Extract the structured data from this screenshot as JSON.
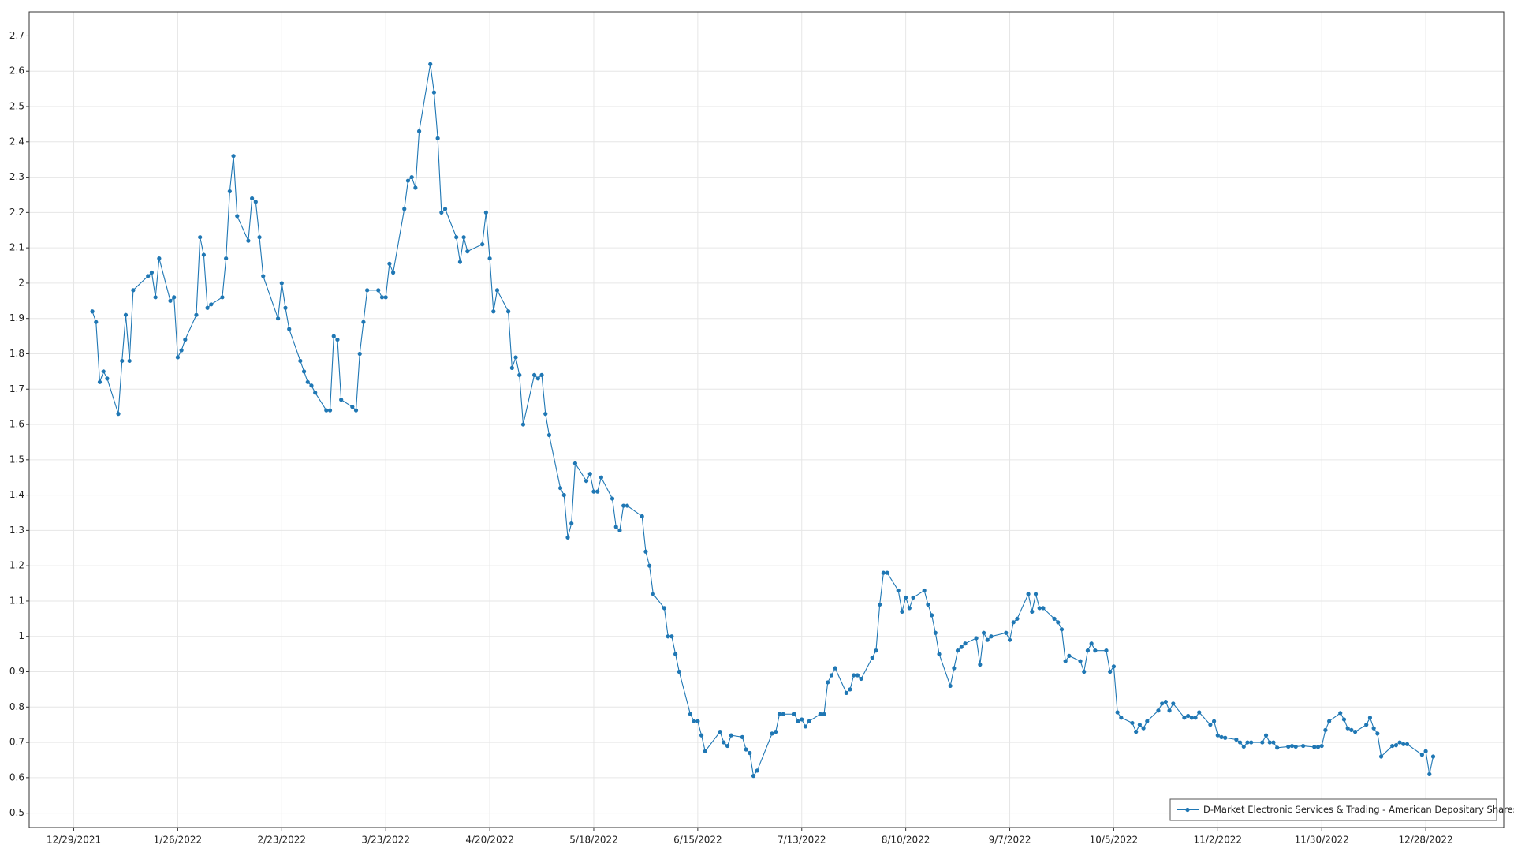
{
  "chart_data": {
    "type": "line",
    "x": [
      "2022-01-03",
      "2022-01-04",
      "2022-01-05",
      "2022-01-06",
      "2022-01-07",
      "2022-01-10",
      "2022-01-11",
      "2022-01-12",
      "2022-01-13",
      "2022-01-14",
      "2022-01-18",
      "2022-01-19",
      "2022-01-20",
      "2022-01-21",
      "2022-01-24",
      "2022-01-25",
      "2022-01-26",
      "2022-01-27",
      "2022-01-28",
      "2022-01-31",
      "2022-02-01",
      "2022-02-02",
      "2022-02-03",
      "2022-02-04",
      "2022-02-07",
      "2022-02-08",
      "2022-02-09",
      "2022-02-10",
      "2022-02-11",
      "2022-02-14",
      "2022-02-15",
      "2022-02-16",
      "2022-02-17",
      "2022-02-18",
      "2022-02-22",
      "2022-02-23",
      "2022-02-24",
      "2022-02-25",
      "2022-02-28",
      "2022-03-01",
      "2022-03-02",
      "2022-03-03",
      "2022-03-04",
      "2022-03-07",
      "2022-03-08",
      "2022-03-09",
      "2022-03-10",
      "2022-03-11",
      "2022-03-14",
      "2022-03-15",
      "2022-03-16",
      "2022-03-17",
      "2022-03-18",
      "2022-03-21",
      "2022-03-22",
      "2022-03-23",
      "2022-03-24",
      "2022-03-25",
      "2022-03-28",
      "2022-03-29",
      "2022-03-30",
      "2022-03-31",
      "2022-04-01",
      "2022-04-04",
      "2022-04-05",
      "2022-04-06",
      "2022-04-07",
      "2022-04-08",
      "2022-04-11",
      "2022-04-12",
      "2022-04-13",
      "2022-04-14",
      "2022-04-18",
      "2022-04-19",
      "2022-04-20",
      "2022-04-21",
      "2022-04-22",
      "2022-04-25",
      "2022-04-26",
      "2022-04-27",
      "2022-04-28",
      "2022-04-29",
      "2022-05-02",
      "2022-05-03",
      "2022-05-04",
      "2022-05-05",
      "2022-05-06",
      "2022-05-09",
      "2022-05-10",
      "2022-05-11",
      "2022-05-12",
      "2022-05-13",
      "2022-05-16",
      "2022-05-17",
      "2022-05-18",
      "2022-05-19",
      "2022-05-20",
      "2022-05-23",
      "2022-05-24",
      "2022-05-25",
      "2022-05-26",
      "2022-05-27",
      "2022-05-31",
      "2022-06-01",
      "2022-06-02",
      "2022-06-03",
      "2022-06-06",
      "2022-06-07",
      "2022-06-08",
      "2022-06-09",
      "2022-06-10",
      "2022-06-13",
      "2022-06-14",
      "2022-06-15",
      "2022-06-16",
      "2022-06-17",
      "2022-06-21",
      "2022-06-22",
      "2022-06-23",
      "2022-06-24",
      "2022-06-27",
      "2022-06-28",
      "2022-06-29",
      "2022-06-30",
      "2022-07-01",
      "2022-07-05",
      "2022-07-06",
      "2022-07-07",
      "2022-07-08",
      "2022-07-11",
      "2022-07-12",
      "2022-07-13",
      "2022-07-14",
      "2022-07-15",
      "2022-07-18",
      "2022-07-19",
      "2022-07-20",
      "2022-07-21",
      "2022-07-22",
      "2022-07-25",
      "2022-07-26",
      "2022-07-27",
      "2022-07-28",
      "2022-07-29",
      "2022-08-01",
      "2022-08-02",
      "2022-08-03",
      "2022-08-04",
      "2022-08-05",
      "2022-08-08",
      "2022-08-09",
      "2022-08-10",
      "2022-08-11",
      "2022-08-12",
      "2022-08-15",
      "2022-08-16",
      "2022-08-17",
      "2022-08-18",
      "2022-08-19",
      "2022-08-22",
      "2022-08-23",
      "2022-08-24",
      "2022-08-25",
      "2022-08-26",
      "2022-08-29",
      "2022-08-30",
      "2022-08-31",
      "2022-09-01",
      "2022-09-02",
      "2022-09-06",
      "2022-09-07",
      "2022-09-08",
      "2022-09-09",
      "2022-09-12",
      "2022-09-13",
      "2022-09-14",
      "2022-09-15",
      "2022-09-16",
      "2022-09-19",
      "2022-09-20",
      "2022-09-21",
      "2022-09-22",
      "2022-09-23",
      "2022-09-26",
      "2022-09-27",
      "2022-09-28",
      "2022-09-29",
      "2022-09-30",
      "2022-10-03",
      "2022-10-04",
      "2022-10-05",
      "2022-10-06",
      "2022-10-07",
      "2022-10-10",
      "2022-10-11",
      "2022-10-12",
      "2022-10-13",
      "2022-10-14",
      "2022-10-17",
      "2022-10-18",
      "2022-10-19",
      "2022-10-20",
      "2022-10-21",
      "2022-10-24",
      "2022-10-25",
      "2022-10-26",
      "2022-10-27",
      "2022-10-28",
      "2022-10-31",
      "2022-11-01",
      "2022-11-02",
      "2022-11-03",
      "2022-11-04",
      "2022-11-07",
      "2022-11-08",
      "2022-11-09",
      "2022-11-10",
      "2022-11-11",
      "2022-11-14",
      "2022-11-15",
      "2022-11-16",
      "2022-11-17",
      "2022-11-18",
      "2022-11-21",
      "2022-11-22",
      "2022-11-23",
      "2022-11-25",
      "2022-11-28",
      "2022-11-29",
      "2022-11-30",
      "2022-12-01",
      "2022-12-02",
      "2022-12-05",
      "2022-12-06",
      "2022-12-07",
      "2022-12-08",
      "2022-12-09",
      "2022-12-12",
      "2022-12-13",
      "2022-12-14",
      "2022-12-15",
      "2022-12-16",
      "2022-12-19",
      "2022-12-20",
      "2022-12-21",
      "2022-12-22",
      "2022-12-23",
      "2022-12-27",
      "2022-12-28",
      "2022-12-29",
      "2022-12-30"
    ],
    "series": [
      {
        "name": "D-Market Electronic Services & Trading - American Depositary Shares",
        "color": "#1f77b4",
        "values": [
          1.92,
          1.89,
          1.72,
          1.75,
          1.73,
          1.63,
          1.78,
          1.91,
          1.78,
          1.98,
          2.02,
          2.03,
          1.96,
          2.07,
          1.95,
          1.96,
          1.79,
          1.81,
          1.84,
          1.91,
          2.13,
          2.08,
          1.93,
          1.94,
          1.96,
          2.07,
          2.26,
          2.36,
          2.19,
          2.12,
          2.24,
          2.23,
          2.13,
          2.02,
          1.9,
          2,
          1.93,
          1.87,
          1.78,
          1.75,
          1.72,
          1.71,
          1.69,
          1.64,
          1.64,
          1.85,
          1.84,
          1.67,
          1.65,
          1.64,
          1.8,
          1.89,
          1.98,
          1.98,
          1.96,
          1.96,
          2.055,
          2.03,
          2.21,
          2.29,
          2.3,
          2.27,
          2.43,
          2.62,
          2.54,
          2.41,
          2.2,
          2.21,
          2.13,
          2.06,
          2.13,
          2.09,
          2.11,
          2.2,
          2.07,
          1.92,
          1.98,
          1.92,
          1.76,
          1.79,
          1.74,
          1.6,
          1.74,
          1.73,
          1.74,
          1.63,
          1.57,
          1.42,
          1.4,
          1.28,
          1.32,
          1.49,
          1.44,
          1.46,
          1.41,
          1.41,
          1.45,
          1.39,
          1.31,
          1.3,
          1.37,
          1.37,
          1.34,
          1.24,
          1.2,
          1.12,
          1.08,
          1,
          1,
          0.95,
          0.9,
          0.78,
          0.76,
          0.76,
          0.72,
          0.675,
          0.73,
          0.7,
          0.69,
          0.72,
          0.715,
          0.68,
          0.67,
          0.605,
          0.62,
          0.725,
          0.73,
          0.78,
          0.78,
          0.78,
          0.76,
          0.765,
          0.745,
          0.76,
          0.78,
          0.78,
          0.87,
          0.89,
          0.91,
          0.84,
          0.85,
          0.89,
          0.89,
          0.88,
          0.94,
          0.96,
          1.09,
          1.18,
          1.18,
          1.13,
          1.07,
          1.11,
          1.08,
          1.11,
          1.13,
          1.09,
          1.06,
          1.01,
          0.95,
          0.86,
          0.91,
          0.96,
          0.97,
          0.98,
          0.995,
          0.92,
          1.01,
          0.99,
          1,
          1.01,
          0.99,
          1.04,
          1.05,
          1.12,
          1.07,
          1.12,
          1.08,
          1.08,
          1.05,
          1.04,
          1.02,
          0.93,
          0.945,
          0.93,
          0.9,
          0.96,
          0.98,
          0.96,
          0.96,
          0.9,
          0.915,
          0.785,
          0.77,
          0.755,
          0.73,
          0.75,
          0.74,
          0.76,
          0.79,
          0.81,
          0.815,
          0.79,
          0.81,
          0.77,
          0.775,
          0.77,
          0.77,
          0.785,
          0.75,
          0.76,
          0.72,
          0.715,
          0.713,
          0.708,
          0.7,
          0.688,
          0.7,
          0.7,
          0.7,
          0.72,
          0.7,
          0.7,
          0.685,
          0.688,
          0.69,
          0.688,
          0.69,
          0.687,
          0.687,
          0.69,
          0.735,
          0.76,
          0.783,
          0.765,
          0.74,
          0.735,
          0.73,
          0.75,
          0.77,
          0.74,
          0.725,
          0.66,
          0.69,
          0.692,
          0.7,
          0.695,
          0.695,
          0.665,
          0.675,
          0.61,
          0.66
        ]
      }
    ],
    "xlim": [
      "2021-12-17",
      "2023-01-18"
    ],
    "xticks": [
      {
        "value": "2021-12-29",
        "label": "12/29/2021"
      },
      {
        "value": "2022-01-26",
        "label": "1/26/2022"
      },
      {
        "value": "2022-02-23",
        "label": "2/23/2022"
      },
      {
        "value": "2022-03-23",
        "label": "3/23/2022"
      },
      {
        "value": "2022-04-20",
        "label": "4/20/2022"
      },
      {
        "value": "2022-05-18",
        "label": "5/18/2022"
      },
      {
        "value": "2022-06-15",
        "label": "6/15/2022"
      },
      {
        "value": "2022-07-13",
        "label": "7/13/2022"
      },
      {
        "value": "2022-08-10",
        "label": "8/10/2022"
      },
      {
        "value": "2022-09-07",
        "label": "9/7/2022"
      },
      {
        "value": "2022-10-05",
        "label": "10/5/2022"
      },
      {
        "value": "2022-11-02",
        "label": "11/2/2022"
      },
      {
        "value": "2022-11-30",
        "label": "11/30/2022"
      },
      {
        "value": "2022-12-28",
        "label": "12/28/2022"
      }
    ],
    "ylim": [
      0.459,
      2.768
    ],
    "yticks": [
      0.5,
      0.6,
      0.7,
      0.8,
      0.9,
      1,
      1.1,
      1.2,
      1.3,
      1.4,
      1.5,
      1.6,
      1.7,
      1.8,
      1.9,
      2,
      2.1,
      2.2,
      2.3,
      2.4,
      2.5,
      2.6,
      2.7
    ],
    "grid": true,
    "legend": "lower right"
  }
}
